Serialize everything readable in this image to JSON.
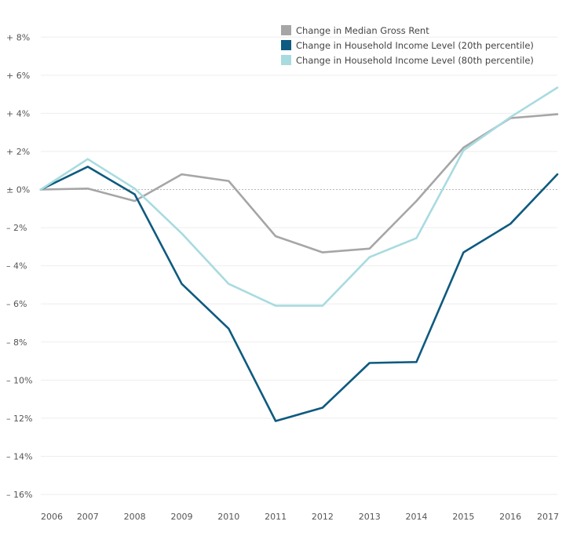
{
  "chart_data": {
    "type": "line",
    "x": [
      "2006",
      "2007",
      "2008",
      "2009",
      "2010",
      "2011",
      "2012",
      "2013",
      "2014",
      "2015",
      "2016",
      "2017"
    ],
    "series": [
      {
        "name": "Change in Median Gross Rent",
        "color": "#a6a6a6",
        "values": [
          0.0,
          0.05,
          -0.6,
          0.8,
          0.45,
          -2.45,
          -3.3,
          -3.1,
          -0.6,
          2.2,
          3.75,
          3.95
        ]
      },
      {
        "name": "Change in Household Income Level (20th percentile)",
        "color": "#0e5a80",
        "values": [
          0.0,
          1.2,
          -0.25,
          -4.95,
          -7.3,
          -12.15,
          -11.45,
          -9.1,
          -9.05,
          -3.3,
          -1.8,
          0.8
        ]
      },
      {
        "name": "Change in Household Income Level (80th percentile)",
        "color": "#a8dbe0",
        "values": [
          0.0,
          1.6,
          0.05,
          -2.3,
          -4.95,
          -6.1,
          -6.1,
          -3.55,
          -2.55,
          2.05,
          3.8,
          5.35
        ]
      }
    ],
    "y_ticks": [
      {
        "value": 8,
        "label": "+ 8%"
      },
      {
        "value": 6,
        "label": "+ 6%"
      },
      {
        "value": 4,
        "label": "+ 4%"
      },
      {
        "value": 2,
        "label": "+ 2%"
      },
      {
        "value": 0,
        "label": "± 0%"
      },
      {
        "value": -2,
        "label": "– 2%"
      },
      {
        "value": -4,
        "label": "– 4%"
      },
      {
        "value": -6,
        "label": "– 6%"
      },
      {
        "value": -8,
        "label": "– 8%"
      },
      {
        "value": -10,
        "label": "– 10%"
      },
      {
        "value": -12,
        "label": "– 12%"
      },
      {
        "value": -14,
        "label": "– 14%"
      },
      {
        "value": -16,
        "label": "– 16%"
      }
    ],
    "ylim": [
      -16.7,
      9.0
    ],
    "title": "",
    "xlabel": "",
    "ylabel": "",
    "grid": true,
    "legend_position": "top-right"
  }
}
